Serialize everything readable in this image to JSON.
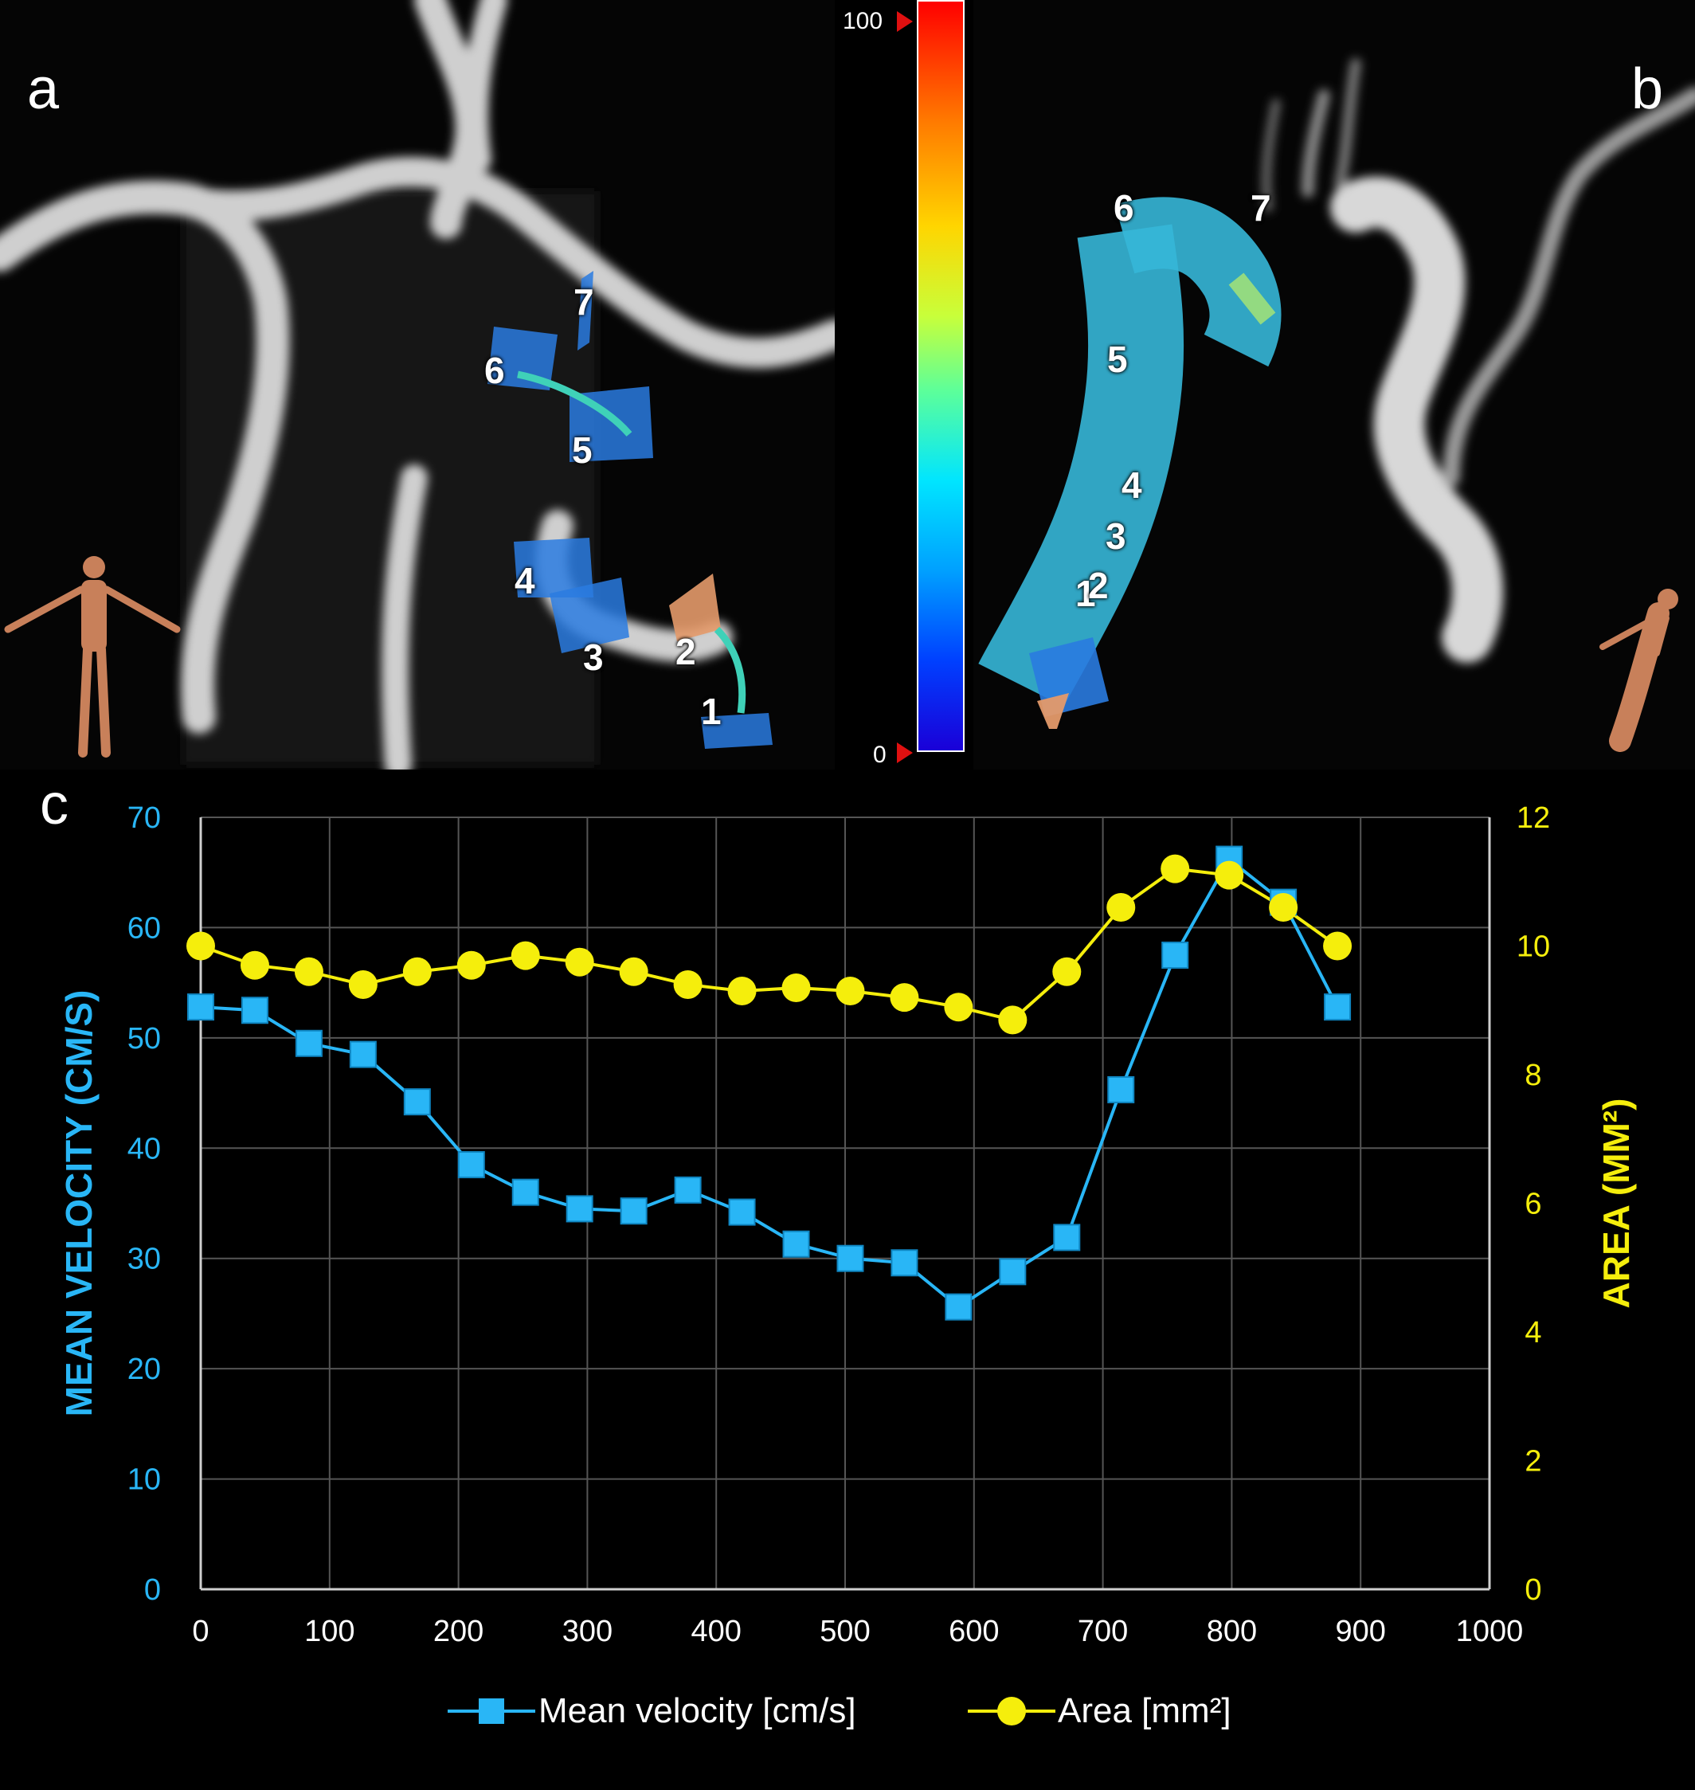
{
  "panels": {
    "a": {
      "letter": "a",
      "labels": [
        "1",
        "2",
        "3",
        "4",
        "5",
        "6",
        "7"
      ]
    },
    "b": {
      "letter": "b",
      "labels": [
        "1",
        "2",
        "3",
        "4",
        "5",
        "6",
        "7"
      ]
    },
    "c": {
      "letter": "c"
    }
  },
  "colorbar": {
    "max_label": "100",
    "min_label": "0"
  },
  "colors": {
    "velocity": "#29b6f6",
    "area": "#f5ee0c",
    "grid": "#555555",
    "axis": "#cfcfcf",
    "tick_x": "#ffffff"
  },
  "chart_data": {
    "type": "line",
    "x_label": "",
    "y_label": "MEAN VELOCITY (CM/S)",
    "y2_label": "AREA (MM²)",
    "xlim": [
      0,
      1000
    ],
    "ylim": [
      0,
      70
    ],
    "y2lim": [
      0,
      12
    ],
    "x_ticks": [
      "0",
      "100",
      "200",
      "300",
      "400",
      "500",
      "600",
      "700",
      "800",
      "900",
      "1000"
    ],
    "y_ticks": [
      "0",
      "10",
      "20",
      "30",
      "40",
      "50",
      "60",
      "70"
    ],
    "y2_ticks": [
      "0",
      "2",
      "4",
      "6",
      "8",
      "10",
      "12"
    ],
    "grid": true,
    "legend_position": "bottom",
    "series": [
      {
        "name": "Mean velocity [cm/s]",
        "axis": "left",
        "marker": "square",
        "x": [
          0,
          42,
          84,
          126,
          168,
          210,
          252,
          294,
          336,
          378,
          420,
          462,
          504,
          546,
          588,
          630,
          672,
          714,
          756,
          798,
          840,
          882
        ],
        "values": [
          52.8,
          52.5,
          49.5,
          48.5,
          44.2,
          38.5,
          36.0,
          34.5,
          34.3,
          36.2,
          34.2,
          31.3,
          30.0,
          29.6,
          25.6,
          28.8,
          31.9,
          45.3,
          57.5,
          66.2,
          62.3,
          52.8
        ]
      },
      {
        "name": "Area [mm²]",
        "axis": "right",
        "marker": "circle",
        "x": [
          0,
          42,
          84,
          126,
          168,
          210,
          252,
          294,
          336,
          378,
          420,
          462,
          504,
          546,
          588,
          630,
          672,
          714,
          756,
          798,
          840,
          882
        ],
        "values": [
          10.0,
          9.7,
          9.6,
          9.4,
          9.6,
          9.7,
          9.85,
          9.75,
          9.6,
          9.4,
          9.3,
          9.35,
          9.3,
          9.2,
          9.05,
          8.85,
          9.6,
          10.6,
          11.2,
          11.1,
          10.6,
          10.0
        ]
      }
    ]
  }
}
